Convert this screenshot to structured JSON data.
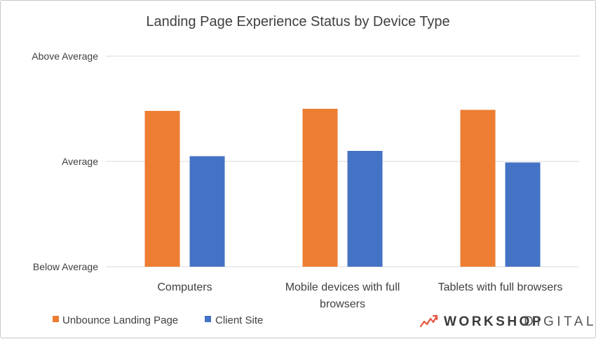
{
  "chart_data": {
    "type": "bar",
    "title": "Landing Page Experience Status by Device Type",
    "categories": [
      "Computers",
      "Mobile devices with full browsers",
      "Tablets with full browsers"
    ],
    "category_lines": [
      [
        "Computers"
      ],
      [
        "Mobile devices with full",
        "browsers"
      ],
      [
        "Tablets with full browsers"
      ]
    ],
    "series": [
      {
        "name": "Unbounce Landing Page",
        "color": "#ED7D31",
        "values": [
          1.48,
          1.5,
          1.49
        ]
      },
      {
        "name": "Client Site",
        "color": "#4472C4",
        "values": [
          1.05,
          1.1,
          0.99
        ]
      }
    ],
    "ylim": [
      0,
      2
    ],
    "yticks": [
      {
        "value": 0,
        "label": "Below Average"
      },
      {
        "value": 1,
        "label": "Average"
      },
      {
        "value": 2,
        "label": "Above Average"
      }
    ],
    "grid": true,
    "legend_position": "bottom-left"
  },
  "branding": {
    "word1": "WORKSHOP",
    "word2": "DIGITAL",
    "accent_color": "#E8553E"
  }
}
